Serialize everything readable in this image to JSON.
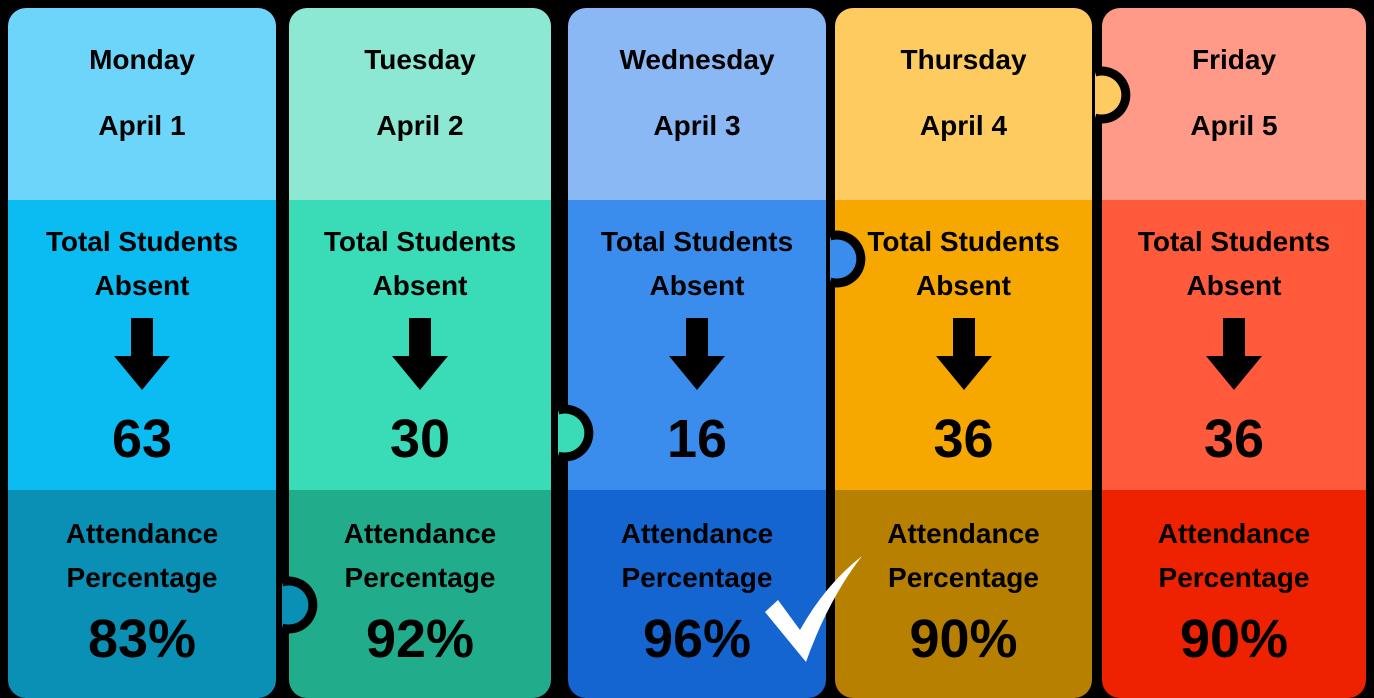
{
  "days": [
    {
      "day": "Monday",
      "date": "April 1",
      "absent_label": "Total Students Absent",
      "absent": "63",
      "attendance_label": "Attendance Percentage",
      "attendance": "83%"
    },
    {
      "day": "Tuesday",
      "date": "April 2",
      "absent_label": "Total Students Absent",
      "absent": "30",
      "attendance_label": "Attendance Percentage",
      "attendance": "92%"
    },
    {
      "day": "Wednesday",
      "date": "April 3",
      "absent_label": "Total Students Absent",
      "absent": "16",
      "attendance_label": "Attendance Percentage",
      "attendance": "96%"
    },
    {
      "day": "Thursday",
      "date": "April 4",
      "absent_label": "Total Students Absent",
      "absent": "36",
      "attendance_label": "Attendance Percentage",
      "attendance": "90%"
    },
    {
      "day": "Friday",
      "date": "April 5",
      "absent_label": "Total Students Absent",
      "absent": "36",
      "attendance_label": "Attendance Percentage",
      "attendance": "90%"
    }
  ]
}
